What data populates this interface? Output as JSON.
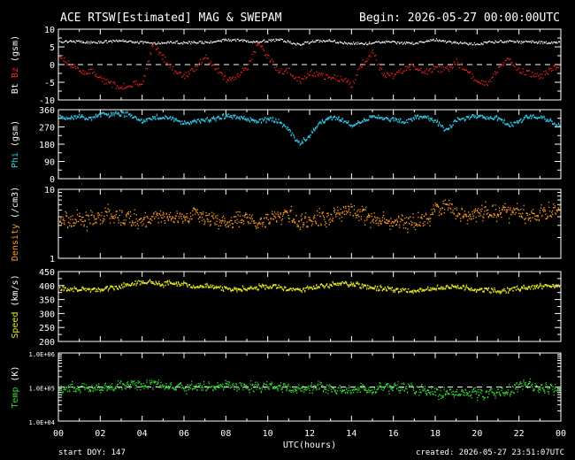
{
  "header": {
    "title": "ACE RTSW[Estimated] MAG & SWEPAM",
    "begin": "Begin: 2026-05-27 00:00:00UTC"
  },
  "footer": {
    "start_doy": "start DOY: 147",
    "created": "created: 2026-05-27 23:51:07UTC"
  },
  "colors": {
    "bt": "#ffffff",
    "bz": "#ff2020",
    "phi": "#30c8e8",
    "density": "#ff9a20",
    "speed": "#e8e820",
    "temp": "#30d830",
    "axis": "#ffffff"
  },
  "chart_data": {
    "type": "scatter",
    "x_axis": {
      "label": "UTC(hours)",
      "range": [
        0,
        24
      ],
      "tick_labels": [
        "00",
        "02",
        "04",
        "06",
        "08",
        "10",
        "12",
        "14",
        "16",
        "18",
        "20",
        "22",
        "00"
      ]
    },
    "panels": [
      {
        "id": "mag",
        "ylabel": "Bt Bz (gsm)",
        "ylabel_parts": [
          {
            "text": "Bt",
            "color": "#ffffff"
          },
          {
            "text": " Bz",
            "color": "#ff2020"
          },
          {
            "text": " (gsm)",
            "color": "#ffffff"
          }
        ],
        "ylim": [
          -10,
          10
        ],
        "yscale": "linear",
        "yticks": [
          -10,
          -5,
          0,
          5,
          10
        ],
        "ytick_labels": [
          "-10",
          "-5",
          "0",
          "5",
          "10"
        ],
        "ref_line": 0,
        "series": [
          {
            "name": "Bt",
            "color": "#ffffff",
            "x": [
              0,
              0.5,
              1,
              1.5,
              2,
              2.5,
              3,
              3.5,
              4,
              4.5,
              5,
              5.5,
              6,
              6.5,
              7,
              7.5,
              8,
              8.5,
              9,
              9.5,
              10,
              10.5,
              11,
              11.5,
              12,
              12.5,
              13,
              13.5,
              14,
              14.5,
              15,
              15.5,
              16,
              16.5,
              17,
              17.5,
              18,
              18.5,
              19,
              19.5,
              20,
              20.5,
              21,
              21.5,
              22,
              22.5,
              23,
              23.5,
              24
            ],
            "y": [
              6.5,
              6.8,
              6.6,
              6.4,
              6.5,
              6.7,
              6.9,
              6.6,
              6.4,
              6.2,
              6.3,
              6.6,
              6.2,
              6.5,
              6.3,
              6.8,
              7.1,
              7.0,
              6.8,
              6.6,
              6.9,
              7.2,
              6.5,
              5.8,
              6.5,
              6.8,
              6.9,
              6.3,
              6.2,
              6.0,
              6.3,
              6.5,
              6.4,
              6.2,
              6.1,
              6.8,
              7.2,
              6.5,
              6.3,
              6.1,
              6.0,
              6.4,
              6.6,
              6.8,
              6.5,
              6.6,
              6.4,
              6.3,
              6.5
            ]
          },
          {
            "name": "Bz",
            "color": "#ff2020",
            "x": [
              0,
              0.5,
              1,
              1.5,
              2,
              2.5,
              3,
              3.5,
              4,
              4.5,
              5,
              5.5,
              6,
              6.5,
              7,
              7.5,
              8,
              8.5,
              9,
              9.5,
              10,
              10.5,
              11,
              11.5,
              12,
              12.5,
              13,
              13.5,
              14,
              14.5,
              15,
              15.5,
              16,
              16.5,
              17,
              17.5,
              18,
              18.5,
              19,
              19.5,
              20,
              20.5,
              21,
              21.5,
              22,
              22.5,
              23,
              23.5,
              24
            ],
            "y": [
              3.0,
              0.5,
              -2.0,
              -1.5,
              -4.0,
              -5.5,
              -6.0,
              -5.5,
              -5.0,
              6.0,
              2.0,
              -1.5,
              -3.0,
              -1.0,
              2.5,
              -1.0,
              -4.0,
              -3.5,
              -0.5,
              6.0,
              2.5,
              -2.0,
              -1.5,
              -4.5,
              -2.0,
              -3.0,
              -3.5,
              -4.0,
              -5.5,
              0.5,
              3.5,
              -3.0,
              -3.0,
              -1.0,
              -0.5,
              -2.0,
              -1.0,
              -1.5,
              1.0,
              -2.0,
              -4.5,
              -5.5,
              -1.0,
              2.0,
              -1.5,
              -2.5,
              -3.5,
              -1.0,
              -0.5
            ]
          }
        ]
      },
      {
        "id": "phi",
        "ylabel": "Phi (gsm)",
        "ylabel_parts": [
          {
            "text": "Phi",
            "color": "#30c8e8"
          },
          {
            "text": " (gsm)",
            "color": "#ffffff"
          }
        ],
        "ylim": [
          0,
          360
        ],
        "yscale": "linear",
        "yticks": [
          0,
          90,
          180,
          270,
          360
        ],
        "ytick_labels": [
          "0",
          "90",
          "180",
          "270",
          "360"
        ],
        "series": [
          {
            "name": "Phi",
            "color": "#30c8e8",
            "x": [
              0,
              0.5,
              1,
              1.5,
              2,
              2.5,
              3,
              3.5,
              4,
              4.5,
              5,
              5.5,
              6,
              6.5,
              7,
              7.5,
              8,
              8.5,
              9,
              9.5,
              10,
              10.5,
              11,
              11.5,
              12,
              12.5,
              13,
              13.5,
              14,
              14.5,
              15,
              15.5,
              16,
              16.5,
              17,
              17.5,
              18,
              18.5,
              19,
              19.5,
              20,
              20.5,
              21,
              21.5,
              22,
              22.5,
              23,
              23.5,
              24
            ],
            "y": [
              325,
              320,
              330,
              315,
              340,
              335,
              345,
              330,
              300,
              320,
              325,
              310,
              290,
              300,
              310,
              320,
              330,
              325,
              310,
              300,
              315,
              305,
              250,
              180,
              230,
              300,
              320,
              310,
              280,
              300,
              330,
              320,
              310,
              300,
              320,
              330,
              300,
              250,
              310,
              320,
              330,
              325,
              320,
              280,
              300,
              330,
              320,
              300,
              270
            ]
          }
        ]
      },
      {
        "id": "density",
        "ylabel": "Density (/cm3)",
        "ylabel_parts": [
          {
            "text": "Density",
            "color": "#ff9a20"
          },
          {
            "text": " (/cm3)",
            "color": "#ffffff"
          }
        ],
        "ylim": [
          1,
          10
        ],
        "yscale": "log",
        "yticks": [
          1,
          10
        ],
        "ytick_labels": [
          "1",
          "10"
        ],
        "series": [
          {
            "name": "Density",
            "color": "#ff9a20",
            "x": [
              0,
              0.5,
              1,
              1.5,
              2,
              2.5,
              3,
              3.5,
              4,
              4.5,
              5,
              5.5,
              6,
              6.5,
              7,
              7.5,
              8,
              8.5,
              9,
              9.5,
              10,
              10.5,
              11,
              11.5,
              12,
              12.5,
              13,
              13.5,
              14,
              14.5,
              15,
              15.5,
              16,
              16.5,
              17,
              17.5,
              18,
              18.5,
              19,
              19.5,
              20,
              20.5,
              21,
              21.5,
              22,
              22.5,
              23,
              23.5,
              24
            ],
            "y": [
              3.6,
              3.4,
              3.8,
              3.5,
              4.2,
              4.6,
              4.0,
              3.8,
              3.4,
              3.9,
              4.1,
              3.7,
              4.0,
              4.4,
              4.2,
              3.6,
              3.3,
              3.5,
              3.9,
              3.2,
              3.8,
              4.3,
              4.6,
              3.0,
              3.6,
              3.8,
              4.2,
              4.8,
              5.2,
              4.4,
              4.0,
              3.8,
              3.6,
              3.3,
              3.4,
              3.6,
              5.0,
              5.4,
              4.8,
              4.2,
              4.5,
              4.8,
              5.0,
              4.6,
              4.4,
              4.2,
              4.5,
              4.7,
              5.3
            ]
          }
        ]
      },
      {
        "id": "speed",
        "ylabel": "Speed (km/s)",
        "ylabel_parts": [
          {
            "text": "Speed",
            "color": "#e8e820"
          },
          {
            "text": " (km/s)",
            "color": "#ffffff"
          }
        ],
        "ylim": [
          200,
          450
        ],
        "yscale": "linear",
        "yticks": [
          200,
          250,
          300,
          350,
          400,
          450
        ],
        "ytick_labels": [
          "200",
          "250",
          "300",
          "350",
          "400",
          "450"
        ],
        "series": [
          {
            "name": "Speed",
            "color": "#e8e820",
            "x": [
              0,
              0.5,
              1,
              1.5,
              2,
              2.5,
              3,
              3.5,
              4,
              4.5,
              5,
              5.5,
              6,
              6.5,
              7,
              7.5,
              8,
              8.5,
              9,
              9.5,
              10,
              10.5,
              11,
              11.5,
              12,
              12.5,
              13,
              13.5,
              14,
              14.5,
              15,
              15.5,
              16,
              16.5,
              17,
              17.5,
              18,
              18.5,
              19,
              19.5,
              20,
              20.5,
              21,
              21.5,
              22,
              22.5,
              23,
              23.5,
              24
            ],
            "y": [
              390,
              388,
              386,
              385,
              388,
              392,
              400,
              410,
              415,
              412,
              408,
              410,
              405,
              400,
              402,
              396,
              390,
              388,
              392,
              395,
              400,
              397,
              390,
              385,
              392,
              400,
              405,
              410,
              408,
              400,
              395,
              390,
              388,
              385,
              382,
              385,
              392,
              398,
              396,
              392,
              388,
              385,
              382,
              385,
              392,
              395,
              398,
              400,
              402
            ]
          }
        ]
      },
      {
        "id": "temp",
        "ylabel": "Temp (K)",
        "ylabel_parts": [
          {
            "text": "Temp",
            "color": "#30d830"
          },
          {
            "text": " (K)",
            "color": "#ffffff"
          }
        ],
        "ylim": [
          10000,
          1000000
        ],
        "yscale": "log",
        "yticks": [
          10000,
          100000,
          1000000
        ],
        "ytick_labels": [
          "1.0E+04",
          "1.0E+05",
          "1.0E+06"
        ],
        "ref_line": 100000,
        "series": [
          {
            "name": "Temp",
            "color": "#30d830",
            "x": [
              0,
              0.5,
              1,
              1.5,
              2,
              2.5,
              3,
              3.5,
              4,
              4.5,
              5,
              5.5,
              6,
              6.5,
              7,
              7.5,
              8,
              8.5,
              9,
              9.5,
              10,
              10.5,
              11,
              11.5,
              12,
              12.5,
              13,
              13.5,
              14,
              14.5,
              15,
              15.5,
              16,
              16.5,
              17,
              17.5,
              18,
              18.5,
              19,
              19.5,
              20,
              20.5,
              21,
              21.5,
              22,
              22.5,
              23,
              23.5,
              24
            ],
            "y": [
              90000,
              95000,
              100000,
              98000,
              92000,
              105000,
              115000,
              120000,
              110000,
              125000,
              118000,
              112000,
              105000,
              100000,
              98000,
              110000,
              118000,
              112000,
              105000,
              100000,
              108000,
              115000,
              95000,
              88000,
              100000,
              96000,
              92000,
              88000,
              90000,
              85000,
              92000,
              95000,
              100000,
              98000,
              90000,
              85000,
              70000,
              65000,
              75000,
              70000,
              60000,
              65000,
              72000,
              80000,
              110000,
              120000,
              100000,
              95000,
              90000
            ]
          }
        ]
      }
    ]
  }
}
